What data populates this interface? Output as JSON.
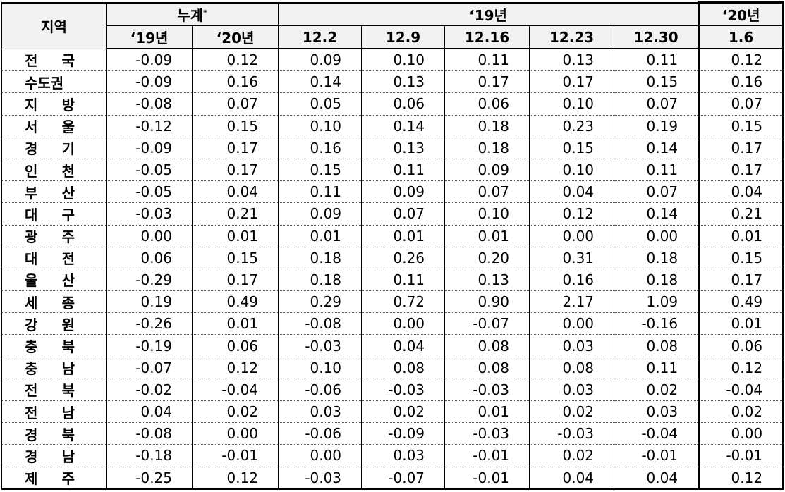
{
  "header": {
    "region": "지역",
    "cumulative": "누계",
    "cumulative_mark": "*",
    "year_2019": "‘19년",
    "year_2020": "‘20년",
    "columns": [
      "‘19년",
      "‘20년",
      "12.2",
      "12.9",
      "12.16",
      "12.23",
      "12.30",
      "1.6"
    ]
  },
  "table": {
    "rows": [
      [
        "전 국",
        "-0.09",
        "0.12",
        "0.09",
        "0.10",
        "0.11",
        "0.13",
        "0.11",
        "0.12"
      ],
      [
        "수도권",
        "-0.09",
        "0.16",
        "0.14",
        "0.13",
        "0.17",
        "0.17",
        "0.15",
        "0.16"
      ],
      [
        "지 방",
        "-0.08",
        "0.07",
        "0.05",
        "0.06",
        "0.06",
        "0.10",
        "0.07",
        "0.07"
      ],
      [
        "서 울",
        "-0.12",
        "0.15",
        "0.10",
        "0.14",
        "0.18",
        "0.23",
        "0.19",
        "0.15"
      ],
      [
        "경 기",
        "-0.09",
        "0.17",
        "0.16",
        "0.13",
        "0.18",
        "0.15",
        "0.14",
        "0.17"
      ],
      [
        "인 천",
        "-0.05",
        "0.17",
        "0.15",
        "0.11",
        "0.09",
        "0.10",
        "0.11",
        "0.17"
      ],
      [
        "부 산",
        "-0.05",
        "0.04",
        "0.11",
        "0.09",
        "0.07",
        "0.04",
        "0.07",
        "0.04"
      ],
      [
        "대 구",
        "-0.03",
        "0.21",
        "0.09",
        "0.07",
        "0.10",
        "0.12",
        "0.14",
        "0.21"
      ],
      [
        "광 주",
        "0.00",
        "0.01",
        "0.01",
        "0.01",
        "0.01",
        "0.00",
        "0.00",
        "0.01"
      ],
      [
        "대 전",
        "0.06",
        "0.15",
        "0.18",
        "0.26",
        "0.20",
        "0.31",
        "0.18",
        "0.15"
      ],
      [
        "울 산",
        "-0.29",
        "0.17",
        "0.18",
        "0.11",
        "0.13",
        "0.16",
        "0.18",
        "0.17"
      ],
      [
        "세 종",
        "0.19",
        "0.49",
        "0.29",
        "0.72",
        "0.90",
        "2.17",
        "1.09",
        "0.49"
      ],
      [
        "강 원",
        "-0.26",
        "0.01",
        "-0.08",
        "0.00",
        "-0.07",
        "0.00",
        "-0.16",
        "0.01"
      ],
      [
        "충 북",
        "-0.19",
        "0.06",
        "-0.03",
        "0.04",
        "0.08",
        "0.03",
        "0.08",
        "0.06"
      ],
      [
        "충 남",
        "-0.07",
        "0.12",
        "0.10",
        "0.08",
        "0.08",
        "0.08",
        "0.11",
        "0.12"
      ],
      [
        "전 북",
        "-0.02",
        "-0.04",
        "-0.06",
        "-0.03",
        "-0.03",
        "0.03",
        "0.02",
        "-0.04"
      ],
      [
        "전 남",
        "0.04",
        "0.02",
        "0.03",
        "0.02",
        "0.01",
        "0.02",
        "0.03",
        "0.02"
      ],
      [
        "경 북",
        "-0.08",
        "0.00",
        "-0.06",
        "-0.09",
        "-0.03",
        "-0.03",
        "-0.04",
        "0.00"
      ],
      [
        "경 남",
        "-0.18",
        "-0.01",
        "0.00",
        "0.03",
        "-0.01",
        "0.02",
        "-0.01",
        "-0.01"
      ],
      [
        "제 주",
        "-0.25",
        "0.12",
        "-0.03",
        "-0.07",
        "-0.01",
        "0.04",
        "0.04",
        "0.12"
      ]
    ]
  }
}
